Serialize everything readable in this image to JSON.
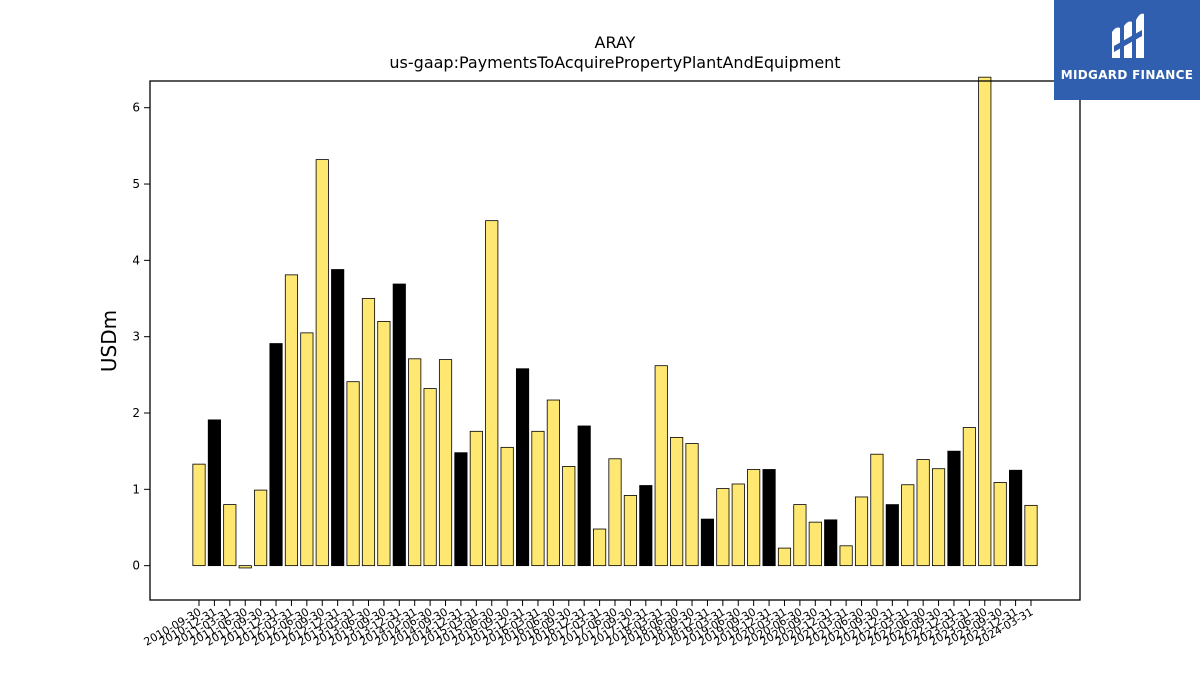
{
  "chart_data": {
    "type": "bar",
    "title": "ARAY",
    "subtitle": "us-gaap:PaymentsToAcquirePropertyPlantAndEquipment",
    "ylabel": "USDm",
    "xlabel": "",
    "ylim": [
      -0.45,
      6.35
    ],
    "yticks": [
      0,
      1,
      2,
      3,
      4,
      5,
      6
    ],
    "grid": false,
    "colors": {
      "annual": "#000000",
      "quarter": "#ffe872",
      "edge": "#000000"
    },
    "categories": [
      "2010-09-30",
      "2010-12-31",
      "2011-03-31",
      "2011-06-30",
      "2011-09-30",
      "2011-12-31",
      "2012-03-31",
      "2012-06-30",
      "2012-09-30",
      "2012-12-31",
      "2013-03-31",
      "2013-06-30",
      "2013-09-30",
      "2013-12-31",
      "2014-03-31",
      "2014-06-30",
      "2014-09-30",
      "2014-12-31",
      "2015-03-31",
      "2015-06-30",
      "2015-09-30",
      "2015-12-31",
      "2016-03-31",
      "2016-06-30",
      "2016-09-30",
      "2016-12-31",
      "2017-03-31",
      "2017-06-30",
      "2017-09-30",
      "2017-12-31",
      "2018-03-31",
      "2018-06-30",
      "2018-09-30",
      "2018-12-31",
      "2019-03-31",
      "2019-06-30",
      "2019-09-30",
      "2019-12-31",
      "2020-03-31",
      "2020-06-30",
      "2020-09-30",
      "2020-12-31",
      "2021-03-31",
      "2021-06-30",
      "2021-09-30",
      "2021-12-31",
      "2022-03-31",
      "2022-06-30",
      "2022-09-30",
      "2022-12-31",
      "2023-03-31",
      "2023-06-30",
      "2023-09-30",
      "2023-12-31",
      "2024-03-31"
    ],
    "values": [
      1.33,
      1.91,
      0.8,
      -0.03,
      0.99,
      2.91,
      3.81,
      3.05,
      5.32,
      3.88,
      2.41,
      3.5,
      3.2,
      3.69,
      2.71,
      2.32,
      2.7,
      1.48,
      1.76,
      4.52,
      1.55,
      2.58,
      1.76,
      2.17,
      1.3,
      1.83,
      0.48,
      1.4,
      0.92,
      1.05,
      2.62,
      1.68,
      1.6,
      0.61,
      1.01,
      1.07,
      1.26,
      1.26,
      0.23,
      0.8,
      0.57,
      0.6,
      0.26,
      0.9,
      1.46,
      0.8,
      1.06,
      1.39,
      1.27,
      1.5,
      1.81,
      6.4,
      1.09,
      1.25,
      0.79
    ],
    "annual": [
      false,
      true,
      false,
      false,
      false,
      true,
      false,
      false,
      false,
      true,
      false,
      false,
      false,
      true,
      false,
      false,
      false,
      true,
      false,
      false,
      false,
      true,
      false,
      false,
      false,
      true,
      false,
      false,
      false,
      true,
      false,
      false,
      false,
      true,
      false,
      false,
      false,
      true,
      false,
      false,
      false,
      true,
      false,
      false,
      false,
      true,
      false,
      false,
      false,
      true,
      false,
      false,
      false,
      true,
      false
    ]
  },
  "logo": {
    "text": "MIDGARD FINANCE",
    "bg": "#2f5fae"
  }
}
